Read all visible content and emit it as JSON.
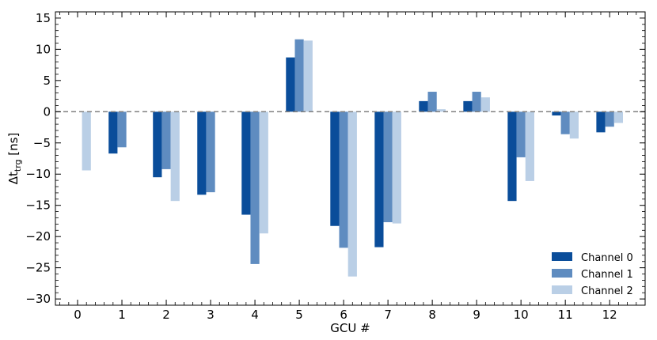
{
  "chart_data": {
    "type": "bar",
    "title": "",
    "xlabel": "GCU #",
    "ylabel": "Δt",
    "ylabel_sub": "trg",
    "ylabel_unit": " [ns]",
    "categories": [
      "0",
      "1",
      "2",
      "3",
      "4",
      "5",
      "6",
      "7",
      "8",
      "9",
      "10",
      "11",
      "12"
    ],
    "ylim": [
      -31,
      16
    ],
    "yticks": [
      15,
      10,
      5,
      0,
      -5,
      -10,
      -15,
      -20,
      -25,
      -30
    ],
    "ytick_labels": [
      "15",
      "10",
      "5",
      "0",
      "−5",
      "−10",
      "−15",
      "−20",
      "−25",
      "−30"
    ],
    "reference_line": 0,
    "grid": false,
    "legend_position": "bottom-right",
    "series": [
      {
        "name": "Channel 0",
        "color": "#0a4d9a",
        "values": [
          null,
          -6.7,
          -10.5,
          -13.3,
          -16.5,
          8.7,
          -18.3,
          -21.7,
          1.7,
          1.7,
          -14.3,
          -0.6,
          -3.3
        ]
      },
      {
        "name": "Channel 1",
        "color": "#5f8cc0",
        "values": [
          null,
          -5.7,
          -9.2,
          -12.9,
          -24.4,
          11.6,
          -21.8,
          -17.7,
          3.2,
          3.2,
          -7.3,
          -3.6,
          -2.4
        ]
      },
      {
        "name": "Channel 2",
        "color": "#bacfe6",
        "values": [
          -9.4,
          null,
          -14.3,
          null,
          -19.5,
          11.4,
          -26.4,
          -17.9,
          0.4,
          2.3,
          -11.1,
          -4.3,
          -1.8
        ]
      }
    ]
  }
}
